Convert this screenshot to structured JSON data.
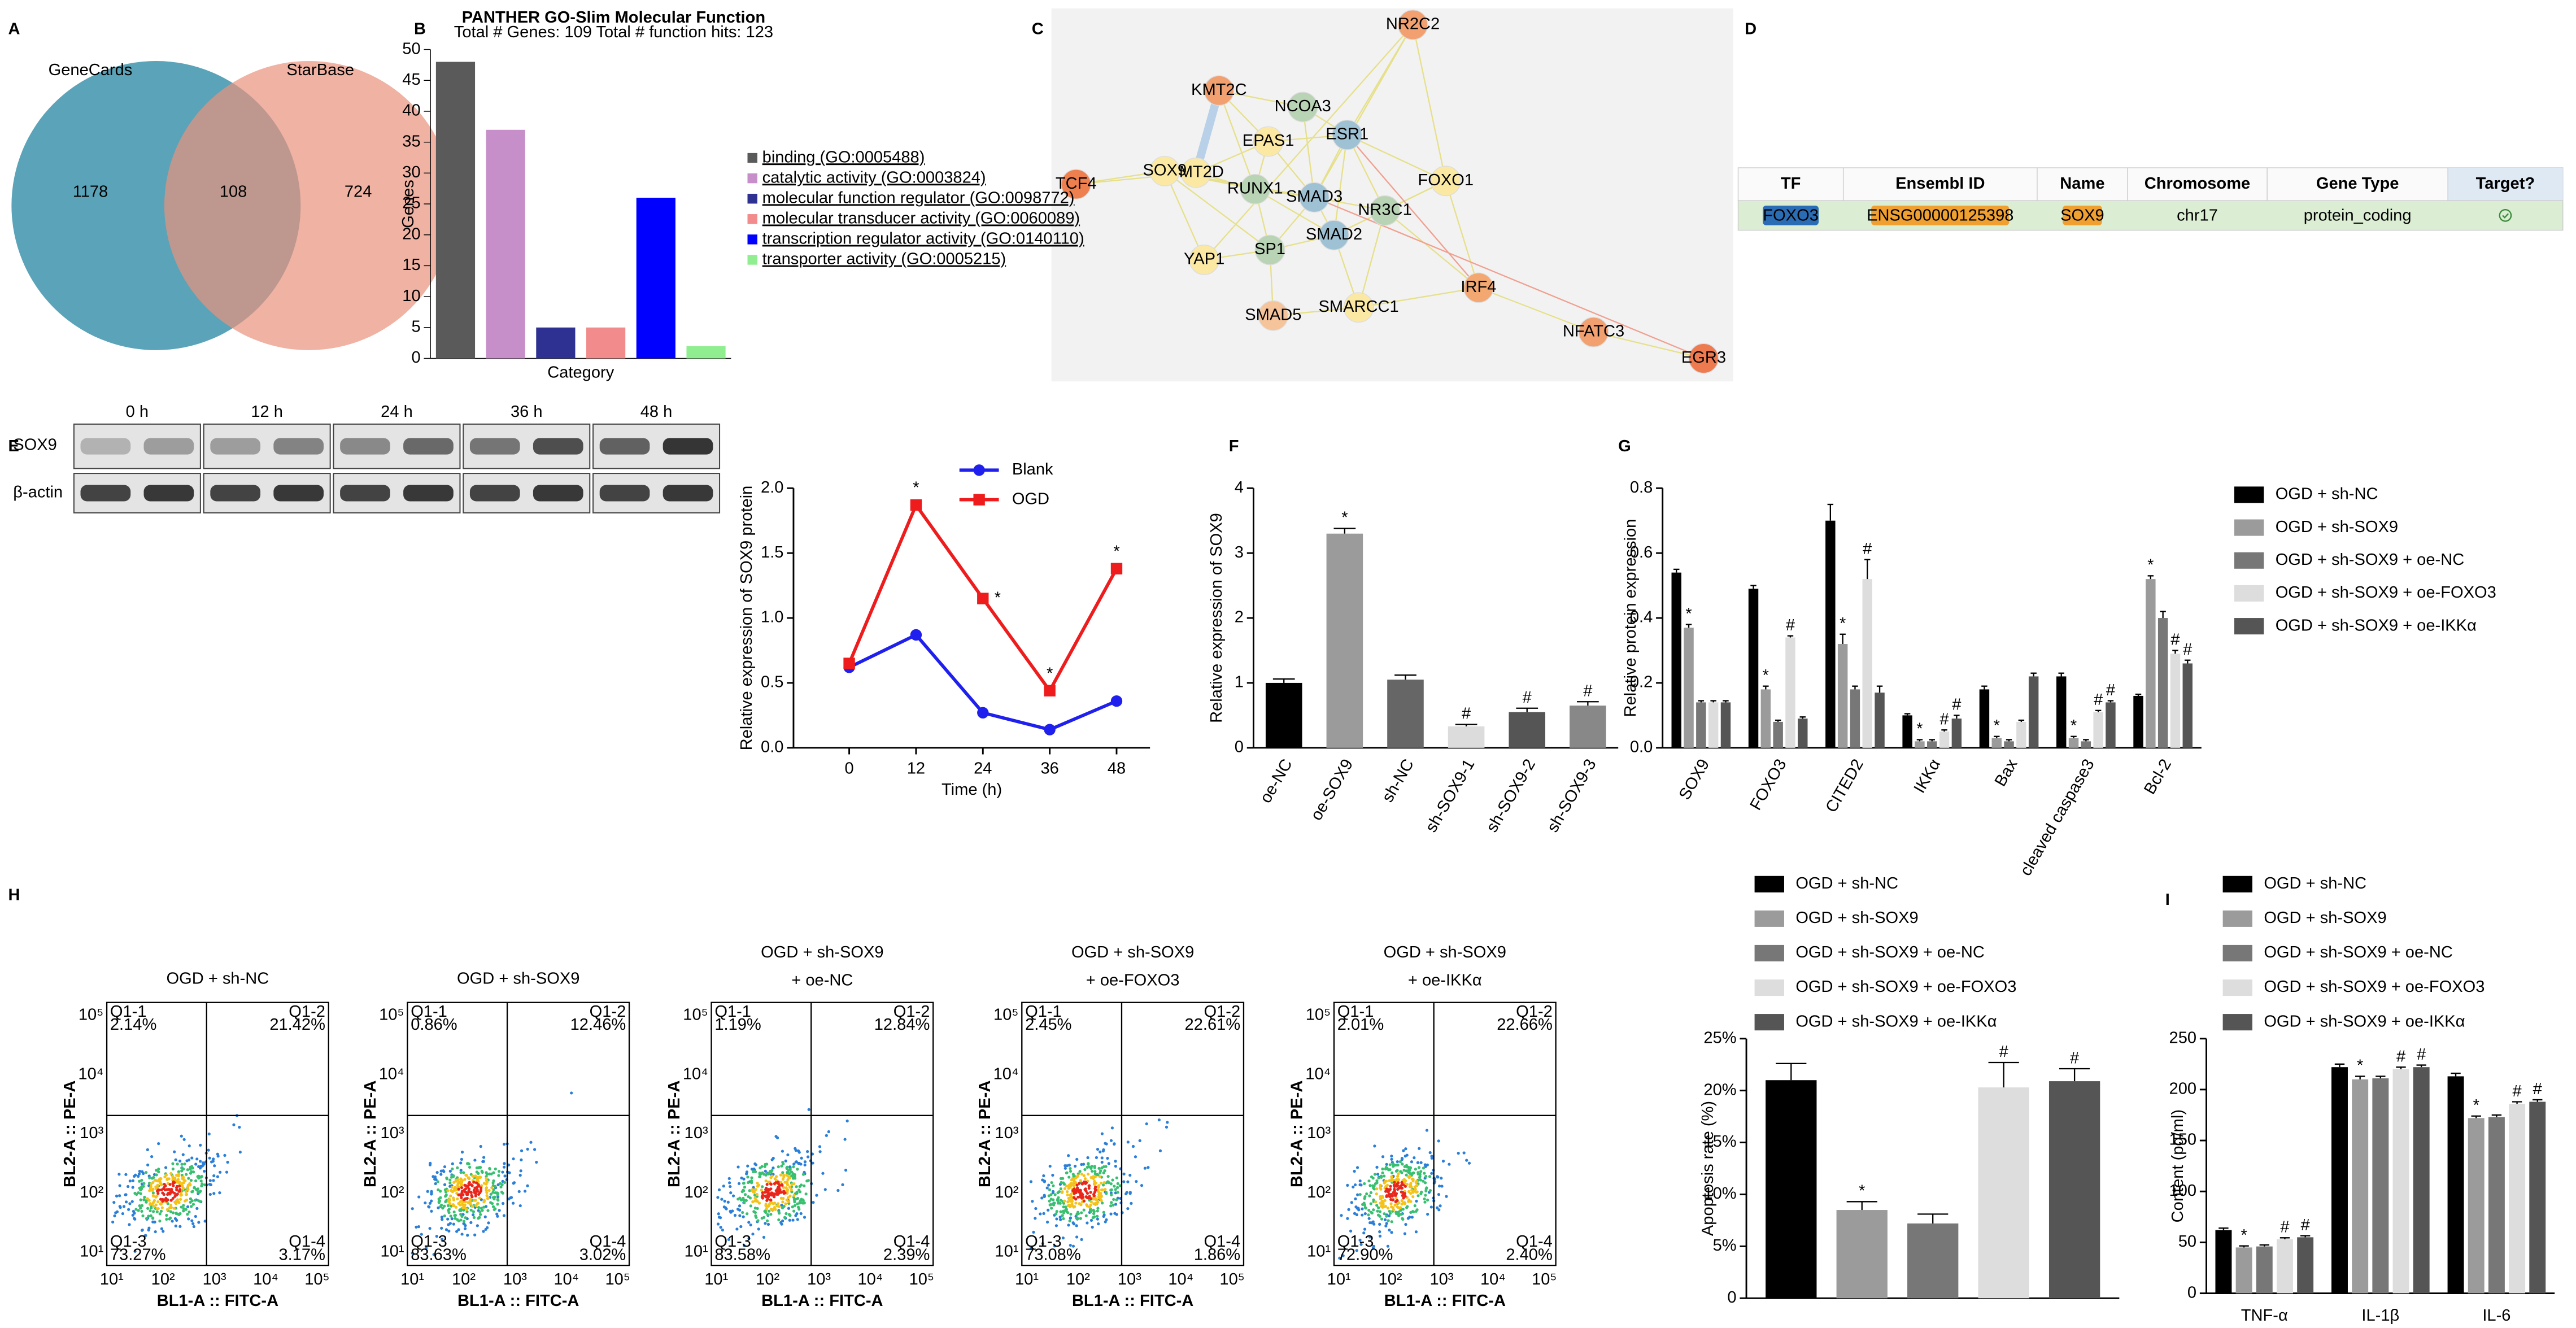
{
  "panels": [
    "A",
    "B",
    "C",
    "D",
    "E",
    "F",
    "G",
    "H",
    "I"
  ],
  "venn": {
    "sets": [
      "GeneCards",
      "StarBase"
    ],
    "counts": [
      "1178",
      "108",
      "724"
    ]
  },
  "network": {
    "nodes": [
      "KMT2C",
      "NR2C2",
      "TCF4",
      "KMT2D",
      "NCOA3",
      "EPAS1",
      "ESR1",
      "SOX9",
      "RUNX1",
      "SMAD3",
      "FOXO1",
      "SP1",
      "SMAD2",
      "NR3C1",
      "YAP1",
      "SMAD5",
      "SMARCC1",
      "IRF4",
      "NFATC3",
      "EGR3"
    ]
  },
  "table": {
    "header": [
      "TF",
      "Ensembl ID",
      "Name",
      "Chromosome",
      "Gene Type",
      "Target?"
    ],
    "rows": [
      [
        "FOXO3",
        "ENSG00000125398",
        "SOX9",
        "chr17",
        "protein_coding"
      ]
    ]
  },
  "blot": {
    "times": [
      "0 h",
      "12 h",
      "24 h",
      "36 h",
      "48 h"
    ],
    "rows": [
      "SOX9",
      "β-actin"
    ]
  },
  "flow": {
    "x_label": "BL1-A :: FITC-A",
    "y_label": "BL2-A :: PE-A",
    "ticks": [
      "10¹",
      "10²",
      "10³",
      "10⁴",
      "10⁵"
    ],
    "plots": [
      {
        "title": [
          "OGD + sh-NC"
        ],
        "quadrants": [
          [
            "Q1-1",
            "2.14%"
          ],
          [
            "Q1-2",
            "21.42%"
          ],
          [
            "Q1-3",
            "73.27%"
          ],
          [
            "Q1-4",
            "3.17%"
          ]
        ]
      },
      {
        "title": [
          "OGD + sh-SOX9"
        ],
        "quadrants": [
          [
            "Q1-1",
            "0.86%"
          ],
          [
            "Q1-2",
            "12.46%"
          ],
          [
            "Q1-3",
            "83.63%"
          ],
          [
            "Q1-4",
            "3.02%"
          ]
        ]
      },
      {
        "title": [
          "OGD + sh-SOX9",
          "+ oe-NC"
        ],
        "quadrants": [
          [
            "Q1-1",
            "1.19%"
          ],
          [
            "Q1-2",
            "12.84%"
          ],
          [
            "Q1-3",
            "83.58%"
          ],
          [
            "Q1-4",
            "2.39%"
          ]
        ]
      },
      {
        "title": [
          "OGD + sh-SOX9",
          "+ oe-FOXO3"
        ],
        "quadrants": [
          [
            "Q1-1",
            "2.45%"
          ],
          [
            "Q1-2",
            "22.61%"
          ],
          [
            "Q1-3",
            "73.08%"
          ],
          [
            "Q1-4",
            "1.86%"
          ]
        ]
      },
      {
        "title": [
          "OGD + sh-SOX9",
          "+ oe-IKKα"
        ],
        "quadrants": [
          [
            "Q1-1",
            "2.01%"
          ],
          [
            "Q1-2",
            "22.66%"
          ],
          [
            "Q1-3",
            "72.90%"
          ],
          [
            "Q1-4",
            "2.40%"
          ]
        ]
      }
    ]
  },
  "chart_data": [
    {
      "type": "bar",
      "title": "PANTHER GO-Slim Molecular Function",
      "subtitle": "Total # Genes: 109   Total # function hits: 123",
      "y_label": "Genes",
      "x_label": "Category",
      "categories": [
        "binding (GO:0005488)",
        "catalytic activity (GO:0003824)",
        "molecular function regulator (GO:0098772)",
        "molecular transducer activity (GO:0060089)",
        "transcription regulator activity (GO:0140110)",
        "transporter activity (GO:0005215)"
      ],
      "values": [
        48,
        37,
        5,
        5,
        26,
        2
      ],
      "colors": [
        "#5a5a5a",
        "#c68fc9",
        "#2e3192",
        "#f28b8b",
        "#0000ff",
        "#90ee90"
      ],
      "ylim": [
        0,
        50
      ],
      "yticks": [
        0,
        5,
        10,
        15,
        20,
        25,
        30,
        35,
        40,
        45,
        50
      ]
    },
    {
      "type": "line",
      "y_label": "Relative  expression of SOX9 protein",
      "x_label": "Time (h)",
      "x": [
        0,
        12,
        24,
        36,
        48
      ],
      "xlim": [
        -10,
        54
      ],
      "xticks": [
        0,
        12,
        24,
        36,
        48
      ],
      "ylim": [
        0,
        2
      ],
      "yticks": [
        {
          "value": 0,
          "label": "0.0"
        },
        {
          "value": 0.5,
          "label": "0.5"
        },
        {
          "value": 1,
          "label": "1.0"
        },
        {
          "value": 1.5,
          "label": "1.5"
        },
        {
          "value": 2,
          "label": "2.0"
        }
      ],
      "series": [
        {
          "name": "Blank",
          "color": "#1f1fee",
          "marker": "circle",
          "values": [
            0.62,
            0.87,
            0.27,
            0.14,
            0.36
          ]
        },
        {
          "name": "OGD",
          "color": "#ee1c1c",
          "marker": "square",
          "values": [
            0.65,
            1.87,
            1.15,
            0.44,
            1.38
          ],
          "significance": [
            null,
            "*",
            "*",
            "*",
            "*"
          ]
        }
      ]
    },
    {
      "type": "bar",
      "y_label": "Relative expression of SOX9",
      "categories": [
        "oe-NC",
        "oe-SOX9",
        "sh-NC",
        "sh-SOX9-1",
        "sh-SOX9-2",
        "sh-SOX9-3"
      ],
      "values": [
        1.0,
        3.3,
        1.05,
        0.33,
        0.55,
        0.65
      ],
      "errors": [
        0.06,
        0.08,
        0.07,
        0.03,
        0.06,
        0.06
      ],
      "significance": [
        null,
        "*",
        null,
        "#",
        "#",
        "#"
      ],
      "colors": [
        "#000000",
        "#9b9b9b",
        "#666666",
        "#dcdcdc",
        "#555555",
        "#888888"
      ],
      "ylim": [
        0,
        4
      ],
      "yticks": [
        0,
        1,
        2,
        3,
        4
      ]
    },
    {
      "type": "bar",
      "y_label": "Relative protein expression",
      "categories": [
        "SOX9",
        "FOXO3",
        "CITED2",
        "IKKα",
        "Bax",
        "cleaved caspase3",
        "Bcl-2"
      ],
      "ylim": [
        0,
        0.8
      ],
      "yticks": [
        {
          "value": 0,
          "label": "0.0"
        },
        {
          "value": 0.2,
          "label": "0.2"
        },
        {
          "value": 0.4,
          "label": "0.4"
        },
        {
          "value": 0.6,
          "label": "0.6"
        },
        {
          "value": 0.8,
          "label": "0.8"
        }
      ],
      "series": [
        {
          "name": "OGD + sh-NC",
          "color": "#000000",
          "values": [
            0.54,
            0.49,
            0.7,
            0.1,
            0.18,
            0.22,
            0.16
          ],
          "errors": [
            0.01,
            0.01,
            0.05,
            0.005,
            0.01,
            0.01,
            0.005
          ]
        },
        {
          "name": "OGD + sh-SOX9",
          "color": "#9b9b9b",
          "values": [
            0.37,
            0.18,
            0.32,
            0.02,
            0.03,
            0.03,
            0.52
          ],
          "errors": [
            0.01,
            0.01,
            0.03,
            0.005,
            0.005,
            0.005,
            0.01
          ],
          "significance": [
            "*",
            "*",
            "*",
            "*",
            "*",
            "*",
            "*"
          ]
        },
        {
          "name": "OGD + sh-SOX9 + oe-NC",
          "color": "#777777",
          "values": [
            0.14,
            0.08,
            0.18,
            0.02,
            0.02,
            0.02,
            0.4
          ],
          "errors": [
            0.005,
            0.005,
            0.01,
            0.005,
            0.005,
            0.005,
            0.02
          ]
        },
        {
          "name": "OGD + sh-SOX9 + oe-FOXO3",
          "color": "#dddddd",
          "values": [
            0.14,
            0.34,
            0.52,
            0.05,
            0.08,
            0.11,
            0.29
          ],
          "errors": [
            0.005,
            0.005,
            0.06,
            0.005,
            0.005,
            0.005,
            0.01
          ],
          "significance": [
            null,
            "#",
            "#",
            "#",
            null,
            "#",
            "#"
          ]
        },
        {
          "name": "OGD + sh-SOX9 + oe-IKKα",
          "color": "#555555",
          "values": [
            0.14,
            0.09,
            0.17,
            0.09,
            0.22,
            0.14,
            0.26
          ],
          "errors": [
            0.005,
            0.005,
            0.02,
            0.01,
            0.01,
            0.005,
            0.01
          ],
          "significance": [
            null,
            null,
            null,
            "#",
            null,
            "#",
            "#"
          ]
        }
      ]
    },
    {
      "type": "bar",
      "y_label": "Apoptosis rate (%)",
      "categories": [
        null
      ],
      "ylim": [
        0,
        25
      ],
      "yticks": [
        0,
        {
          "value": 5,
          "label": "5%"
        },
        {
          "value": 10,
          "label": "10%"
        },
        {
          "value": 15,
          "label": "15%"
        },
        {
          "value": 20,
          "label": "20%"
        },
        {
          "value": 25,
          "label": "25%"
        }
      ],
      "series": [
        {
          "name": "OGD + sh-NC",
          "color": "#000000",
          "values": [
            21.0
          ],
          "errors": [
            1.6
          ]
        },
        {
          "name": "OGD + sh-SOX9",
          "color": "#9b9b9b",
          "values": [
            8.5
          ],
          "errors": [
            0.8
          ],
          "significance": [
            "*"
          ]
        },
        {
          "name": "OGD + sh-SOX9 + oe-NC",
          "color": "#777777",
          "values": [
            7.2
          ],
          "errors": [
            0.9
          ]
        },
        {
          "name": "OGD + sh-SOX9 + oe-FOXO3",
          "color": "#dddddd",
          "values": [
            20.3
          ],
          "errors": [
            2.4
          ],
          "significance": [
            "#"
          ]
        },
        {
          "name": "OGD + sh-SOX9 + oe-IKKα",
          "color": "#555555",
          "values": [
            20.9
          ],
          "errors": [
            1.2
          ],
          "significance": [
            "#"
          ]
        }
      ]
    },
    {
      "type": "bar",
      "y_label": "Content (pg/ml)",
      "categories": [
        "TNF-α",
        "IL-1β",
        "IL-6"
      ],
      "ylim": [
        0,
        250
      ],
      "yticks": [
        0,
        50,
        100,
        150,
        200,
        250
      ],
      "series": [
        {
          "name": "OGD + sh-NC",
          "color": "#000000",
          "values": [
            62,
            222,
            213
          ],
          "errors": [
            2,
            3,
            3
          ]
        },
        {
          "name": "OGD + sh-SOX9",
          "color": "#9b9b9b",
          "values": [
            45,
            210,
            172
          ],
          "errors": [
            1.5,
            3,
            2
          ],
          "significance": [
            "*",
            "*",
            "*"
          ]
        },
        {
          "name": "OGD + sh-SOX9 + oe-NC",
          "color": "#777777",
          "values": [
            46,
            211,
            173
          ],
          "errors": [
            1.5,
            2,
            2
          ]
        },
        {
          "name": "OGD + sh-SOX9 + oe-FOXO3",
          "color": "#dddddd",
          "values": [
            53,
            220,
            186
          ],
          "errors": [
            1.5,
            2,
            2
          ],
          "significance": [
            "#",
            "#",
            "#"
          ]
        },
        {
          "name": "OGD + sh-SOX9 + oe-IKKα",
          "color": "#555555",
          "values": [
            55,
            222,
            188
          ],
          "errors": [
            1.5,
            2,
            2
          ],
          "significance": [
            "#",
            "#",
            "#"
          ]
        }
      ]
    }
  ]
}
